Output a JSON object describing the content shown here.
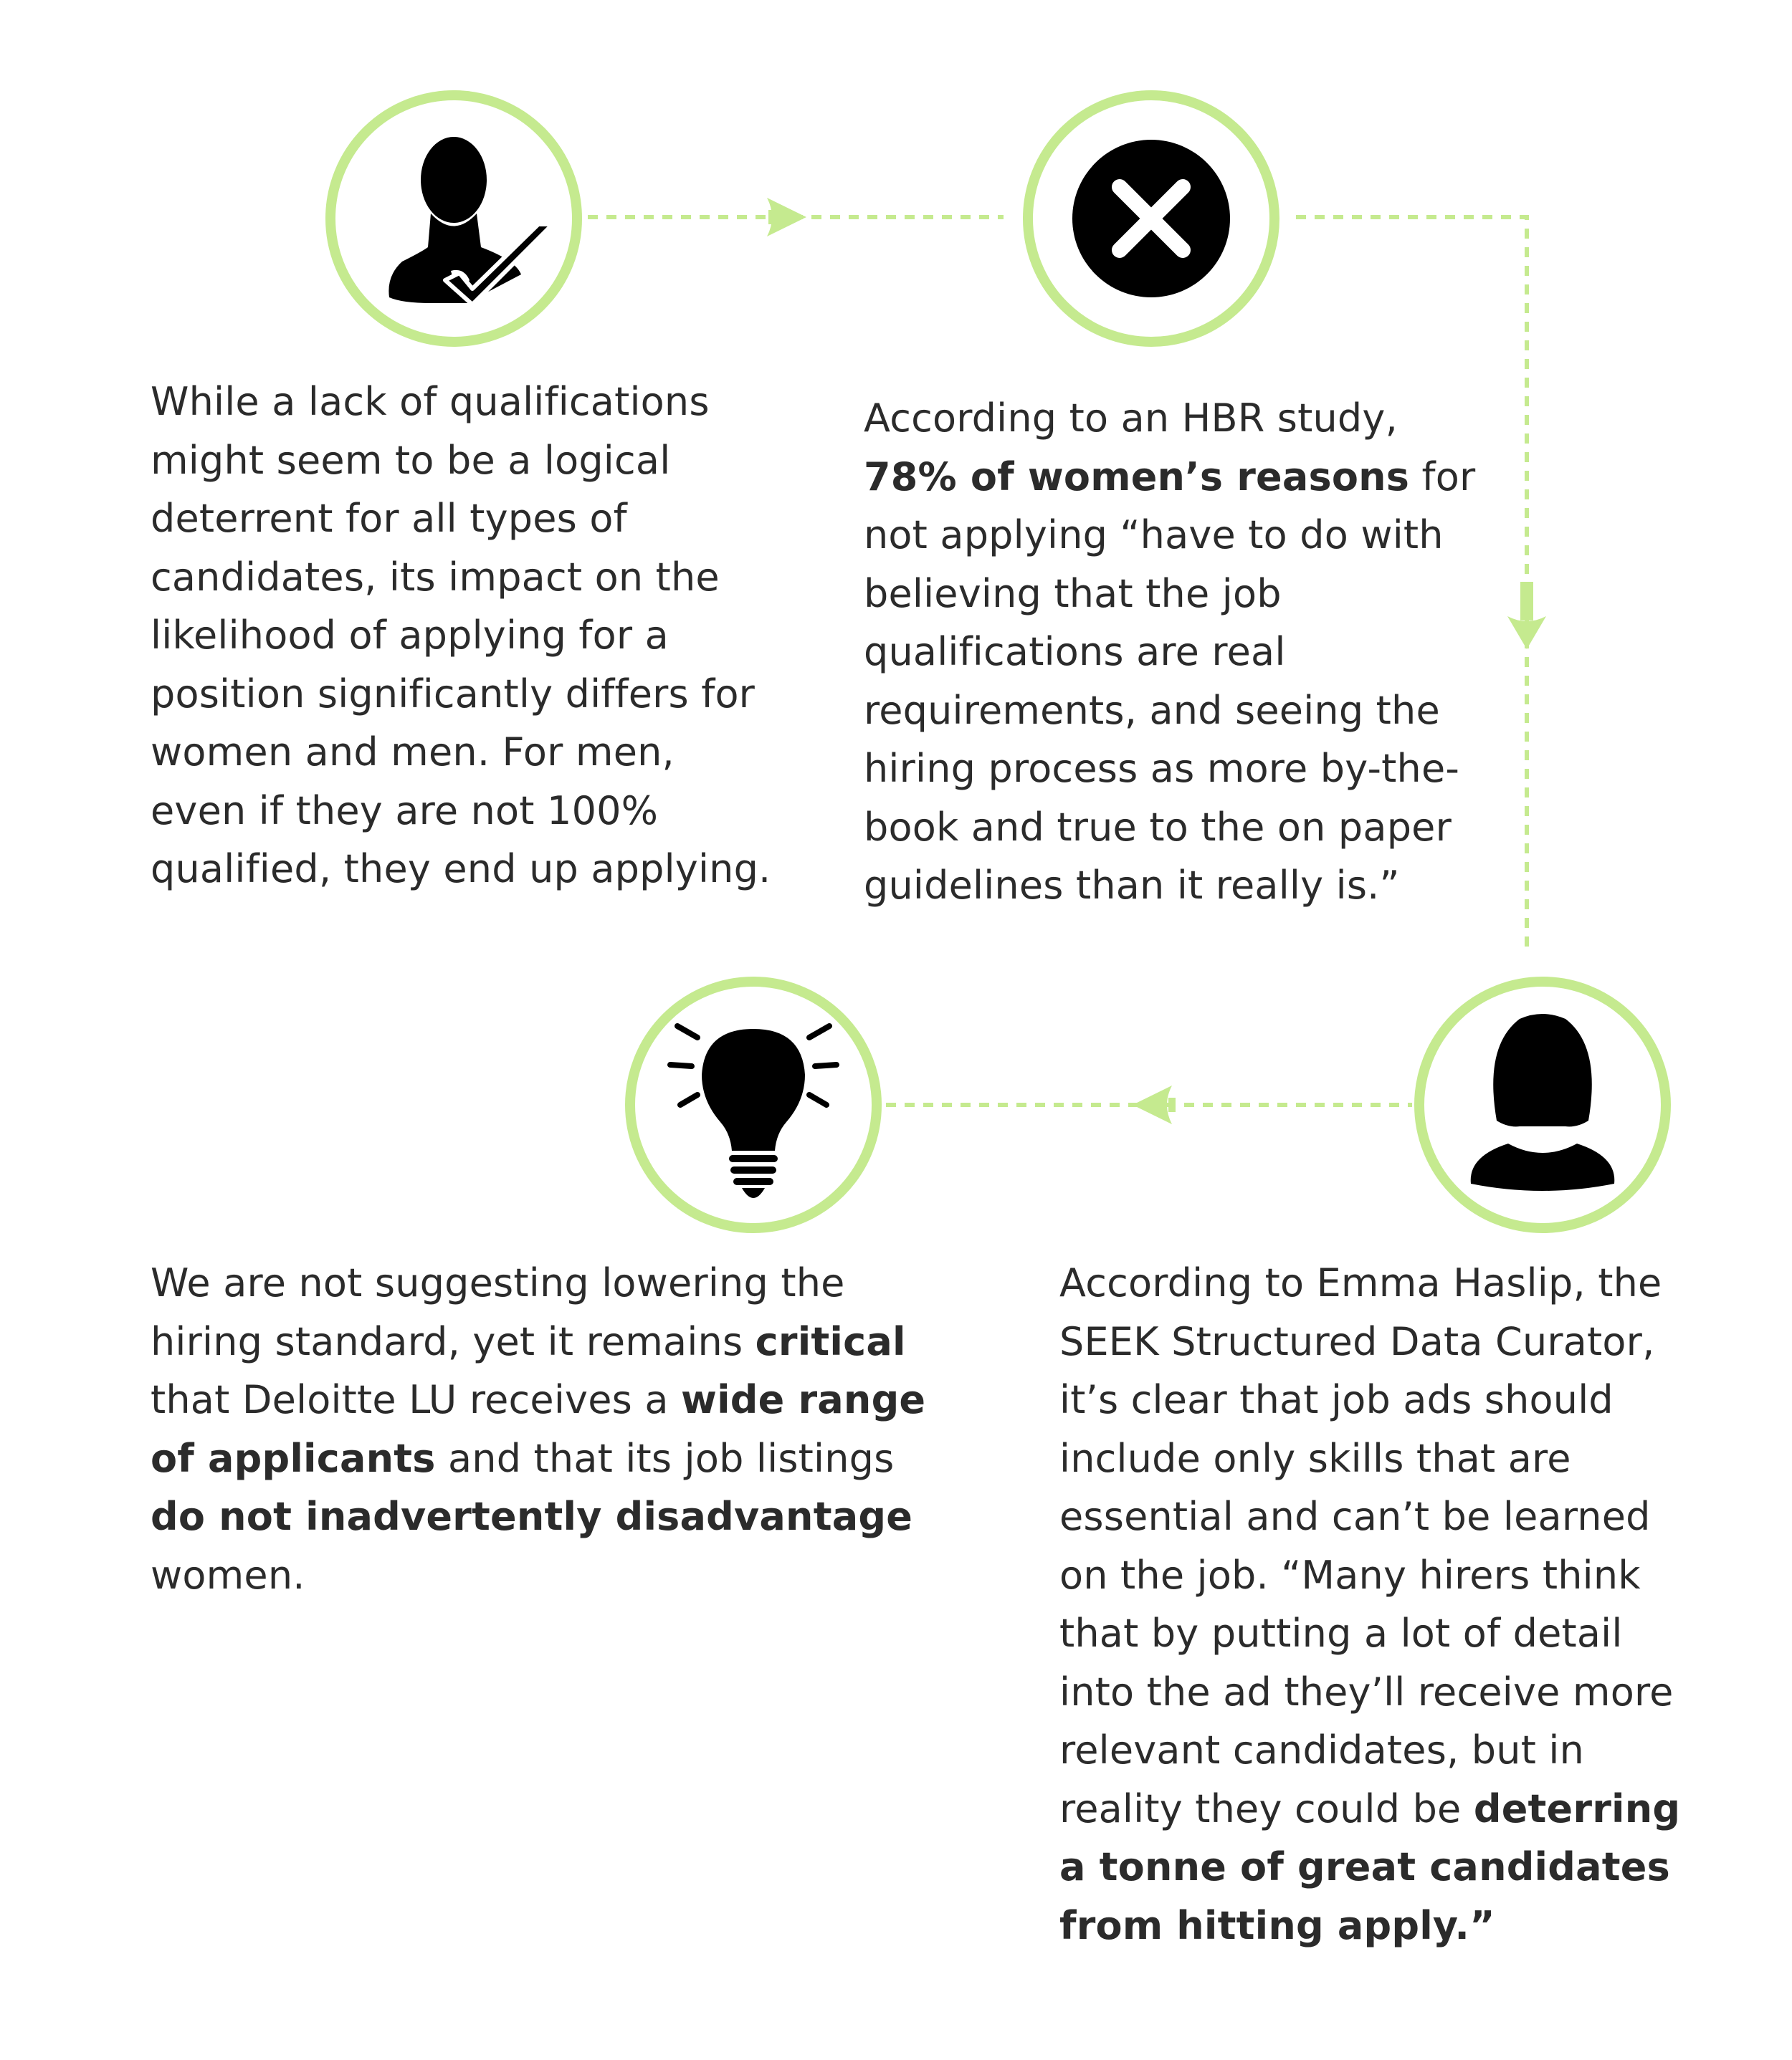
{
  "colors": {
    "accent_green": "#c5ea8f",
    "icon_black": "#000000",
    "text": "#2b2b2b",
    "background": "#ffffff"
  },
  "icons": {
    "step1": "person-checkmark-icon",
    "step2": "x-circle-icon",
    "step3": "woman-silhouette-icon",
    "step4": "lightbulb-icon"
  },
  "steps": [
    {
      "runs": [
        {
          "text": "While a lack of qualifications might seem to be a logical deterrent for all types of candidates, its impact on the likelihood of applying for a position significantly differs for women and men. For men, even if they are not 100% qualified, they end up applying.",
          "bold": false
        }
      ]
    },
    {
      "runs": [
        {
          "text": "According to an HBR study, ",
          "bold": false
        },
        {
          "text": "78% of women’s reasons",
          "bold": true
        },
        {
          "text": " for not applying “have to do with believing that the job qualifications are real requirements, and seeing the hiring process as more by-the-book and true to the on paper guidelines than it really is.”",
          "bold": false
        }
      ]
    },
    {
      "runs": [
        {
          "text": "According to Emma Haslip, the SEEK Structured Data Curator, it’s clear that job ads should include only skills that are essential and can’t be learned on the job. “Many hirers think that by putting a lot of detail into the ad they’ll receive more relevant candidates, but in reality they could be ",
          "bold": false
        },
        {
          "text": "deterring a tonne of great candidates from hitting apply.”",
          "bold": true
        }
      ]
    },
    {
      "runs": [
        {
          "text": "We are not suggesting lowering the hiring standard, yet it remains ",
          "bold": false
        },
        {
          "text": "critical",
          "bold": true
        },
        {
          "text": " that Deloitte LU receives a ",
          "bold": false
        },
        {
          "text": "wide range of applicants",
          "bold": true
        },
        {
          "text": " and that its job listings ",
          "bold": false
        },
        {
          "text": "do not inadvertently disadvantage",
          "bold": true
        },
        {
          "text": " women.",
          "bold": false
        }
      ]
    }
  ]
}
